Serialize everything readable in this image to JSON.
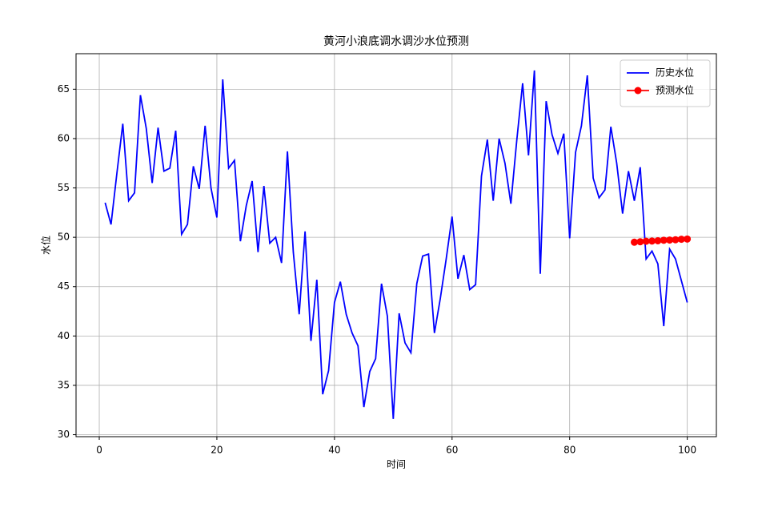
{
  "chart_data": {
    "type": "line",
    "title": "黄河小浪底调水调沙水位预测",
    "xlabel": "时间",
    "ylabel": "水位",
    "xlim": [
      -3.95,
      104.95
    ],
    "xticks": [
      0,
      20,
      40,
      60,
      80,
      100
    ],
    "ylim": [
      29.8,
      68.6
    ],
    "yticks": [
      30,
      35,
      40,
      45,
      50,
      55,
      60,
      65
    ],
    "grid": true,
    "legend": "upper right",
    "series": [
      {
        "name": "历史水位",
        "color": "#0000ff",
        "marker": false,
        "x": [
          1,
          2,
          3,
          4,
          5,
          6,
          7,
          8,
          9,
          10,
          11,
          12,
          13,
          14,
          15,
          16,
          17,
          18,
          19,
          20,
          21,
          22,
          23,
          24,
          25,
          26,
          27,
          28,
          29,
          30,
          31,
          32,
          33,
          34,
          35,
          36,
          37,
          38,
          39,
          40,
          41,
          42,
          43,
          44,
          45,
          46,
          47,
          48,
          49,
          50,
          51,
          52,
          53,
          54,
          55,
          56,
          57,
          58,
          59,
          60,
          61,
          62,
          63,
          64,
          65,
          66,
          67,
          68,
          69,
          70,
          71,
          72,
          73,
          74,
          75,
          76,
          77,
          78,
          79,
          80,
          81,
          82,
          83,
          84,
          85,
          86,
          87,
          88,
          89,
          90,
          91,
          92,
          93,
          94,
          95,
          96,
          97,
          98,
          99,
          100
        ],
        "values": [
          53.5,
          51.3,
          56.5,
          61.5,
          53.7,
          54.5,
          64.4,
          61.0,
          55.5,
          61.1,
          56.7,
          57.0,
          60.8,
          50.3,
          51.3,
          57.2,
          54.9,
          61.3,
          55.0,
          52.0,
          66.0,
          57.0,
          57.8,
          49.6,
          53.2,
          55.7,
          48.5,
          55.2,
          49.4,
          50.0,
          47.4,
          58.7,
          48.5,
          42.2,
          50.6,
          39.5,
          45.7,
          34.1,
          36.5,
          43.4,
          45.5,
          42.2,
          40.3,
          39.0,
          32.8,
          36.4,
          37.7,
          45.3,
          42.0,
          31.6,
          42.3,
          39.3,
          38.3,
          45.3,
          48.1,
          48.3,
          40.3,
          43.8,
          47.8,
          52.1,
          45.8,
          48.2,
          44.7,
          45.2,
          56.2,
          59.9,
          53.7,
          60.0,
          57.5,
          53.4,
          59.8,
          65.6,
          58.3,
          66.9,
          46.3,
          63.8,
          60.4,
          58.5,
          60.5,
          49.9,
          58.6,
          61.3,
          66.4,
          56.0,
          54.0,
          54.8,
          61.2,
          57.5,
          52.4,
          56.7,
          53.7,
          57.1,
          47.8,
          48.6,
          47.3,
          41.0,
          48.8,
          47.8,
          45.6,
          43.4
        ]
      },
      {
        "name": "预测水位",
        "color": "#ff0000",
        "marker": true,
        "x": [
          91,
          92,
          93,
          94,
          95,
          96,
          97,
          98,
          99,
          100
        ],
        "values": [
          49.5,
          49.55,
          49.6,
          49.62,
          49.65,
          49.7,
          49.72,
          49.75,
          49.8,
          49.82
        ]
      }
    ]
  }
}
